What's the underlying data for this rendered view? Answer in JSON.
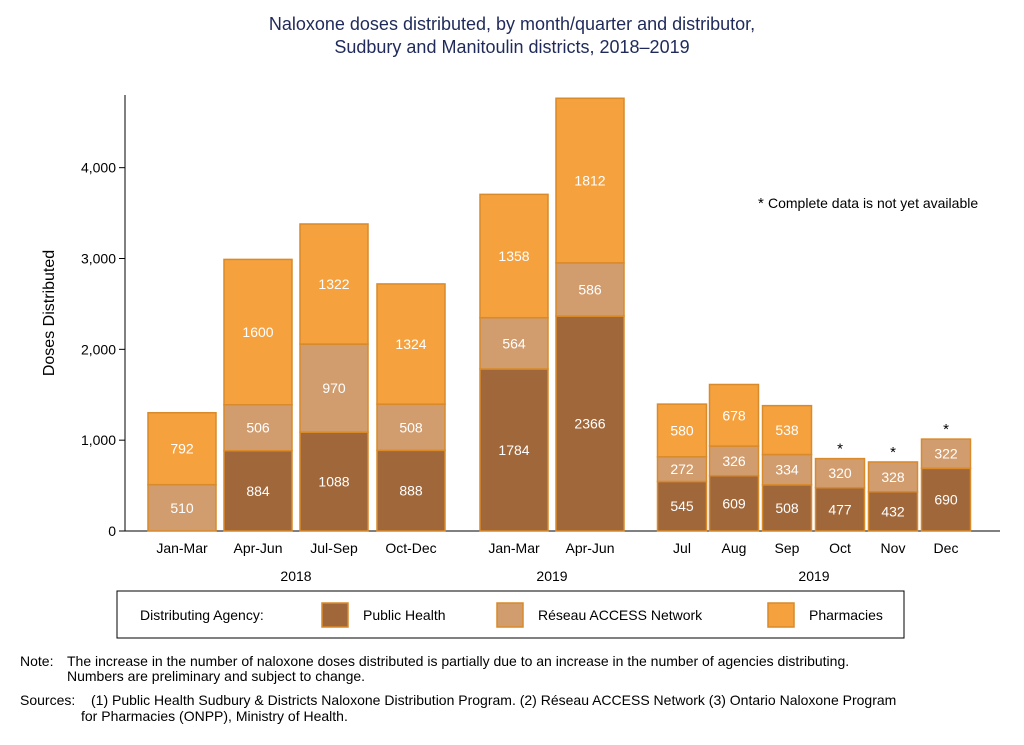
{
  "chart_data": {
    "type": "bar",
    "title": "Naloxone doses distributed, by month/quarter and distributor,",
    "subtitle": "Sudbury and Manitoulin districts, 2018–2019",
    "ylabel": "Doses Distributed",
    "ylim": [
      0,
      4800
    ],
    "yticks": [
      0,
      1000,
      2000,
      3000,
      4000
    ],
    "ytick_labels": [
      "0",
      "1,000",
      "2,000",
      "3,000",
      "4,000"
    ],
    "stacked": true,
    "groups": [
      {
        "label": "2018",
        "categories": [
          "Jan-Mar",
          "Apr-Jun",
          "Jul-Sep",
          "Oct-Dec"
        ]
      },
      {
        "label": "2019",
        "categories": [
          "Jan-Mar",
          "Apr-Jun"
        ]
      },
      {
        "label": "2019",
        "categories": [
          "Jul",
          "Aug",
          "Sep",
          "Oct",
          "Nov",
          "Dec"
        ]
      }
    ],
    "series": [
      {
        "name": "Public Health",
        "color": "#a0673a",
        "values": [
          null,
          884,
          1088,
          888,
          1784,
          2366,
          545,
          609,
          508,
          477,
          432,
          690
        ]
      },
      {
        "name": "Réseau ACCESS Network",
        "color": "#d19d6f",
        "values": [
          510,
          506,
          970,
          508,
          564,
          586,
          272,
          326,
          334,
          320,
          328,
          322
        ]
      },
      {
        "name": "Pharmacies",
        "color": "#f5a23e",
        "values": [
          792,
          1600,
          1322,
          1324,
          1358,
          1812,
          580,
          678,
          538,
          null,
          null,
          null
        ]
      }
    ],
    "incomplete": [
      false,
      false,
      false,
      false,
      false,
      false,
      false,
      false,
      false,
      true,
      true,
      true
    ],
    "asterisk_note": "Complete data is not yet available",
    "legend": {
      "title": "Distributing Agency:",
      "placement": "bottom"
    }
  },
  "notes": {
    "note_label": "Note:",
    "note_line1": "The increase in the number of naloxone doses distributed is partially due to an increase in the number of agencies distributing.",
    "note_line2": "Numbers are preliminary and subject to change.",
    "sources_label": "Sources:",
    "sources_line1": "(1) Public Health Sudbury & Districts Naloxone Distribution Program. (2) Réseau ACCESS Network (3) Ontario Naloxone Program",
    "sources_line2": "for Pharmacies (ONPP), Ministry of Health."
  }
}
